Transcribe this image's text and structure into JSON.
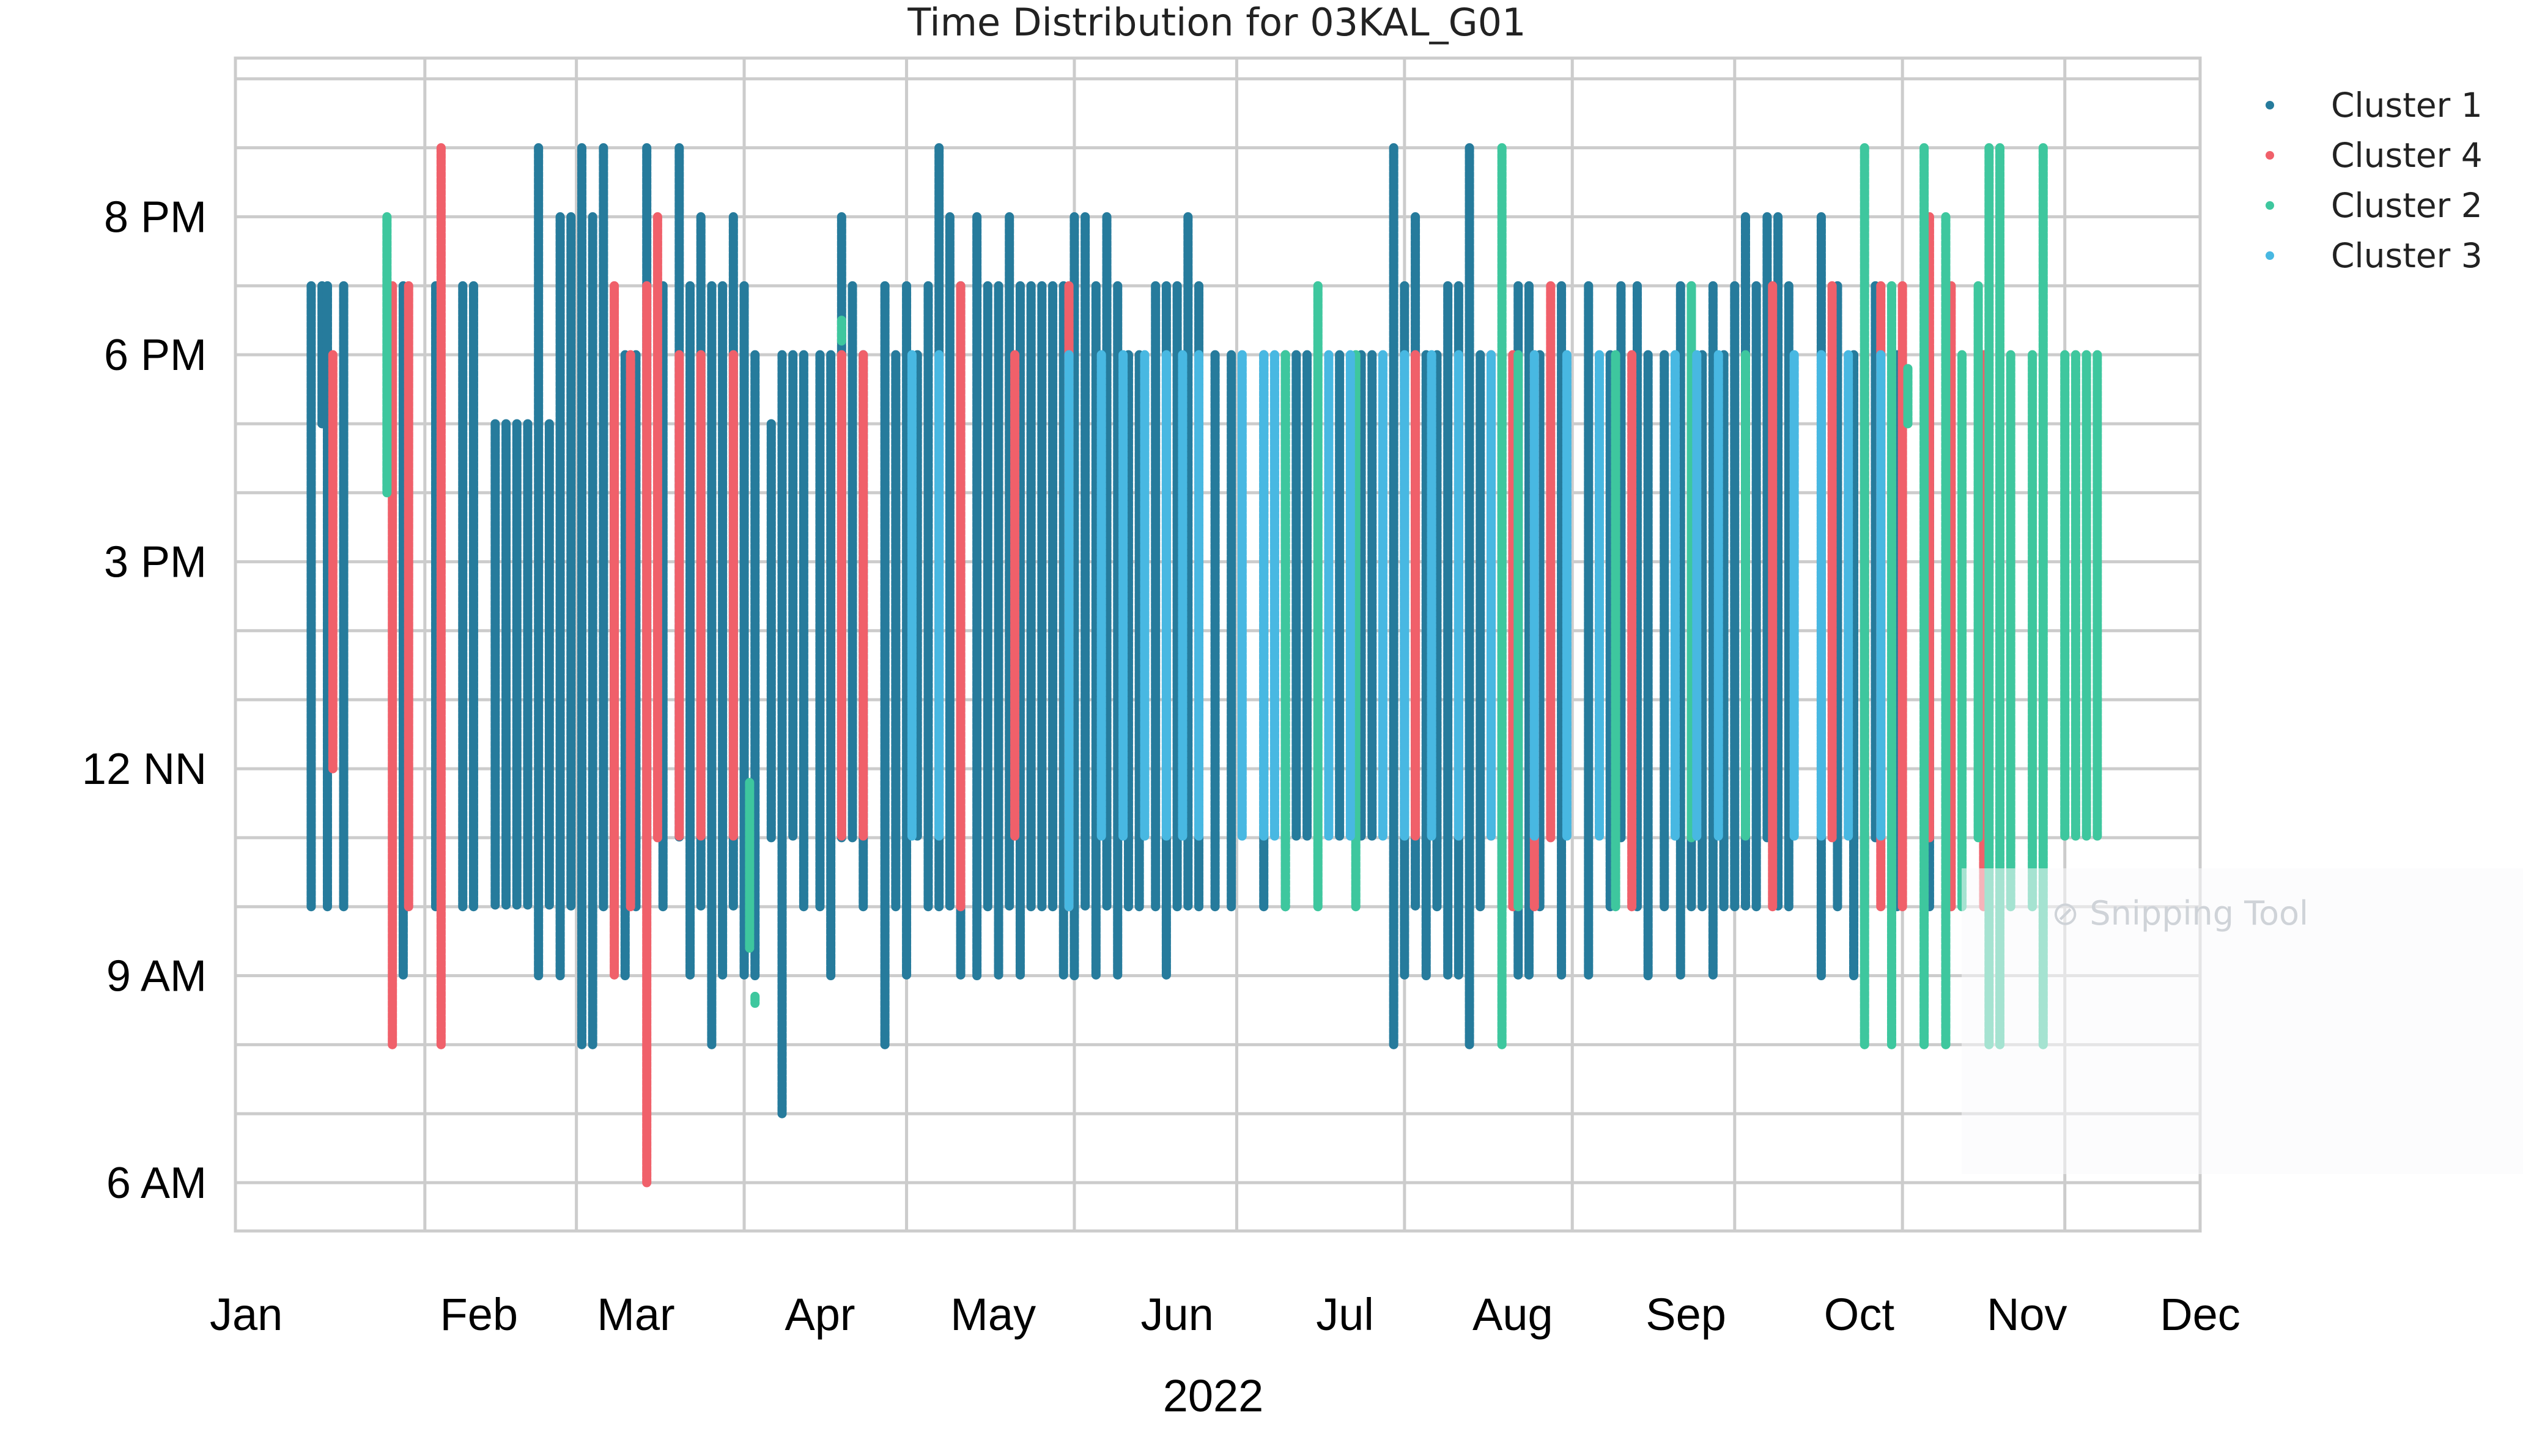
{
  "chart_data": {
    "type": "scatter",
    "title": "Time Distribution for 03KAL_G01",
    "xlabel": "2022",
    "ylabel": "",
    "x_tick_labels": [
      "Jan",
      "Feb",
      "Mar",
      "Apr",
      "May",
      "Jun",
      "Jul",
      "Aug",
      "Sep",
      "Oct",
      "Nov",
      "Dec"
    ],
    "y_tick_labels": [
      "6 AM",
      "9 AM",
      "12 NN",
      "3 PM",
      "6 PM",
      "8 PM"
    ],
    "y_tick_hours": [
      6,
      9,
      12,
      15,
      18,
      20
    ],
    "x_range_days": [
      -4,
      359
    ],
    "y_range_hours": [
      5.3,
      22.3
    ],
    "grid": true,
    "legend_position": "top-right",
    "series": [
      {
        "name": "Cluster 1",
        "color": "#267b9c",
        "spans": [
          [
            10,
            10,
            19
          ],
          [
            12,
            17,
            19
          ],
          [
            13,
            10,
            19
          ],
          [
            16,
            10,
            19
          ],
          [
            27,
            9,
            19
          ],
          [
            33,
            10,
            19
          ],
          [
            38,
            10,
            19
          ],
          [
            40,
            10,
            19
          ],
          [
            44,
            10,
            17
          ],
          [
            46,
            10,
            17
          ],
          [
            48,
            10,
            17
          ],
          [
            50,
            10,
            17
          ],
          [
            52,
            9,
            21
          ],
          [
            54,
            10,
            17
          ],
          [
            56,
            9,
            20
          ],
          [
            58,
            10,
            20
          ],
          [
            60,
            8,
            21
          ],
          [
            62,
            8,
            20
          ],
          [
            64,
            10,
            21
          ],
          [
            66,
            10,
            18
          ],
          [
            68,
            9,
            18
          ],
          [
            70,
            10,
            18
          ],
          [
            72,
            10,
            21
          ],
          [
            75,
            10,
            19
          ],
          [
            78,
            11,
            21
          ],
          [
            80,
            9,
            19
          ],
          [
            82,
            10,
            20
          ],
          [
            84,
            8,
            19
          ],
          [
            86,
            9,
            19
          ],
          [
            88,
            10,
            20
          ],
          [
            90,
            9,
            19
          ],
          [
            92,
            9,
            18
          ],
          [
            95,
            11,
            17
          ],
          [
            97,
            7,
            18
          ],
          [
            99,
            11,
            18
          ],
          [
            101,
            10,
            18
          ],
          [
            104,
            10,
            18
          ],
          [
            106,
            9,
            18
          ],
          [
            108,
            11,
            20
          ],
          [
            110,
            11,
            19
          ],
          [
            112,
            10,
            18
          ],
          [
            116,
            8,
            19
          ],
          [
            118,
            10,
            18
          ],
          [
            120,
            9,
            19
          ],
          [
            122,
            11,
            18
          ],
          [
            124,
            10,
            19
          ],
          [
            126,
            10,
            21
          ],
          [
            128,
            10,
            20
          ],
          [
            130,
            9,
            19
          ],
          [
            133,
            9,
            20
          ],
          [
            135,
            10,
            19
          ],
          [
            137,
            9,
            19
          ],
          [
            139,
            10,
            20
          ],
          [
            141,
            9,
            19
          ],
          [
            143,
            10,
            19
          ],
          [
            145,
            10,
            19
          ],
          [
            147,
            10,
            19
          ],
          [
            149,
            9,
            19
          ],
          [
            151,
            9,
            20
          ],
          [
            153,
            10,
            20
          ],
          [
            155,
            9,
            19
          ],
          [
            157,
            10,
            20
          ],
          [
            159,
            9,
            19
          ],
          [
            161,
            10,
            18
          ],
          [
            163,
            10,
            18
          ],
          [
            166,
            10,
            19
          ],
          [
            168,
            9,
            19
          ],
          [
            170,
            10,
            19
          ],
          [
            172,
            10,
            20
          ],
          [
            174,
            10,
            19
          ],
          [
            177,
            10,
            18
          ],
          [
            180,
            10,
            18
          ],
          [
            186,
            10,
            18
          ],
          [
            190,
            10,
            18
          ],
          [
            192,
            11,
            18
          ],
          [
            194,
            11,
            18
          ],
          [
            200,
            11,
            18
          ],
          [
            204,
            11,
            18
          ],
          [
            206,
            11,
            18
          ],
          [
            210,
            8,
            21
          ],
          [
            212,
            9,
            19
          ],
          [
            214,
            10,
            20
          ],
          [
            216,
            9,
            18
          ],
          [
            218,
            10,
            18
          ],
          [
            220,
            9,
            19
          ],
          [
            222,
            9,
            19
          ],
          [
            224,
            8,
            21
          ],
          [
            226,
            10,
            18
          ],
          [
            230,
            10,
            18
          ],
          [
            233,
            9,
            19
          ],
          [
            235,
            9,
            19
          ],
          [
            237,
            10,
            18
          ],
          [
            241,
            9,
            19
          ],
          [
            246,
            9,
            19
          ],
          [
            250,
            10,
            18
          ],
          [
            252,
            11,
            19
          ],
          [
            255,
            10,
            19
          ],
          [
            257,
            9,
            18
          ],
          [
            260,
            10,
            18
          ],
          [
            263,
            9,
            19
          ],
          [
            265,
            10,
            19
          ],
          [
            267,
            10,
            18
          ],
          [
            269,
            9,
            19
          ],
          [
            271,
            10,
            18
          ],
          [
            273,
            10,
            19
          ],
          [
            275,
            10,
            20
          ],
          [
            277,
            10,
            19
          ],
          [
            279,
            11,
            20
          ],
          [
            281,
            10,
            20
          ],
          [
            283,
            10,
            19
          ],
          [
            289,
            9,
            20
          ],
          [
            292,
            10,
            19
          ],
          [
            295,
            9,
            18
          ],
          [
            299,
            11,
            19
          ],
          [
            303,
            10,
            18
          ],
          [
            309,
            10,
            18
          ]
        ]
      },
      {
        "name": "Cluster 4",
        "color": "#f0606a",
        "spans": [
          [
            14,
            12,
            18
          ],
          [
            25,
            8,
            19
          ],
          [
            28,
            10,
            19
          ],
          [
            34,
            8,
            21
          ],
          [
            66,
            9,
            19
          ],
          [
            69,
            10,
            18
          ],
          [
            72,
            6,
            19
          ],
          [
            74,
            11,
            20
          ],
          [
            78,
            11,
            18
          ],
          [
            82,
            11,
            18
          ],
          [
            88,
            11,
            18
          ],
          [
            108,
            11,
            18
          ],
          [
            112,
            11,
            18
          ],
          [
            130,
            10,
            19
          ],
          [
            140,
            11,
            18
          ],
          [
            150,
            10,
            19
          ],
          [
            214,
            11,
            18
          ],
          [
            228,
            11,
            18
          ],
          [
            232,
            10,
            18
          ],
          [
            236,
            10,
            18
          ],
          [
            239,
            11,
            19
          ],
          [
            254,
            10,
            18
          ],
          [
            280,
            10,
            19
          ],
          [
            291,
            11,
            19
          ],
          [
            297,
            10,
            18
          ],
          [
            300,
            10,
            19
          ],
          [
            304,
            10,
            19
          ],
          [
            309,
            11,
            20
          ],
          [
            313,
            10,
            19
          ],
          [
            319,
            10,
            18
          ]
        ]
      },
      {
        "name": "Cluster 2",
        "color": "#3ec79e",
        "spans": [
          [
            24,
            16,
            20
          ],
          [
            91,
            9.4,
            11.8
          ],
          [
            92,
            8.6,
            8.7
          ],
          [
            108,
            18.2,
            18.5
          ],
          [
            190,
            10,
            18
          ],
          [
            196,
            10,
            19
          ],
          [
            203,
            10,
            18
          ],
          [
            230,
            8,
            21
          ],
          [
            233,
            10,
            18
          ],
          [
            251,
            10,
            18
          ],
          [
            265,
            11,
            19
          ],
          [
            275,
            11,
            18
          ],
          [
            297,
            8,
            21
          ],
          [
            302,
            8,
            19
          ],
          [
            305,
            17,
            17.8
          ],
          [
            308,
            8,
            21
          ],
          [
            312,
            8,
            20
          ],
          [
            315,
            10,
            18
          ],
          [
            318,
            11,
            19
          ],
          [
            320,
            8,
            21
          ],
          [
            322,
            8,
            21
          ],
          [
            324,
            10,
            18
          ],
          [
            328,
            10,
            18
          ],
          [
            330,
            8,
            21
          ],
          [
            334,
            11,
            18
          ],
          [
            336,
            11,
            18
          ],
          [
            338,
            11,
            18
          ],
          [
            340,
            11,
            18
          ]
        ]
      },
      {
        "name": "Cluster 3",
        "color": "#48b8e2",
        "spans": [
          [
            121,
            11,
            18
          ],
          [
            126,
            11,
            18
          ],
          [
            150,
            10,
            18
          ],
          [
            156,
            11,
            18
          ],
          [
            160,
            11,
            18
          ],
          [
            164,
            11,
            18
          ],
          [
            168,
            11,
            18
          ],
          [
            171,
            11,
            18
          ],
          [
            174,
            11,
            18
          ],
          [
            182,
            11,
            18
          ],
          [
            186,
            11,
            18
          ],
          [
            188,
            11,
            18
          ],
          [
            198,
            11,
            18
          ],
          [
            202,
            11,
            18
          ],
          [
            208,
            11,
            18
          ],
          [
            212,
            11,
            18
          ],
          [
            217,
            11,
            18
          ],
          [
            222,
            11,
            18
          ],
          [
            228,
            11,
            18
          ],
          [
            236,
            11,
            18
          ],
          [
            242,
            11,
            18
          ],
          [
            248,
            11,
            18
          ],
          [
            262,
            11,
            18
          ],
          [
            266,
            11,
            18
          ],
          [
            270,
            11,
            18
          ],
          [
            284,
            11,
            18
          ],
          [
            289,
            11,
            18
          ],
          [
            294,
            11,
            18
          ],
          [
            300,
            11,
            18
          ]
        ]
      }
    ]
  }
}
